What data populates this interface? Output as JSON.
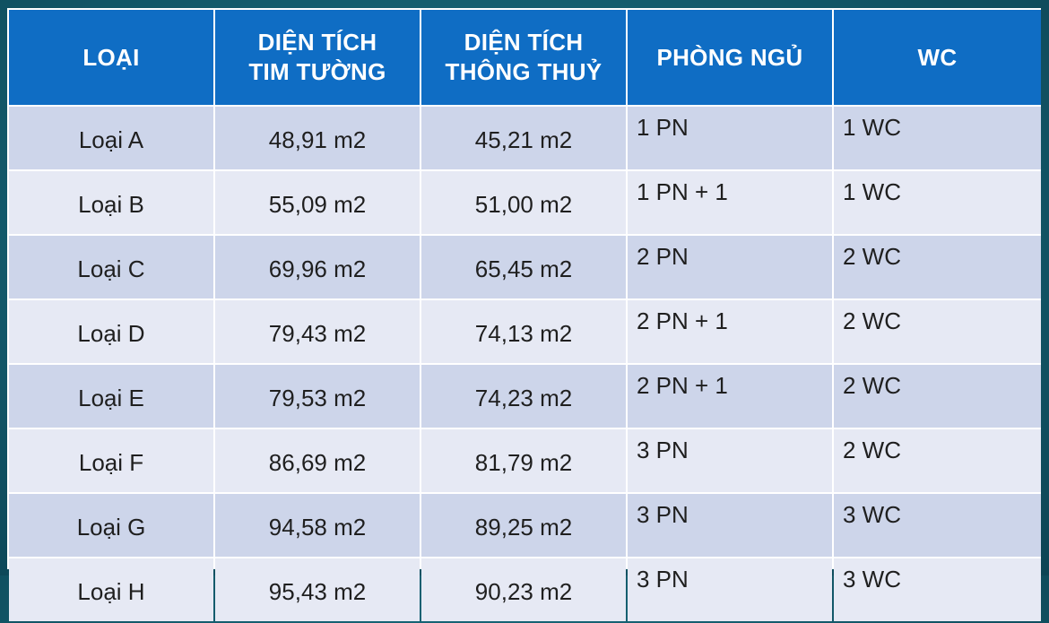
{
  "table": {
    "headers": [
      "LOẠI",
      "DIỆN TÍCH\nTIM TƯỜNG",
      "DIỆN TÍCH\nTHÔNG THUỶ",
      "PHÒNG NGỦ",
      "WC"
    ],
    "rows": [
      [
        "Loại A",
        "48,91 m2",
        "45,21 m2",
        "1 PN",
        "1 WC"
      ],
      [
        "Loại B",
        "55,09 m2",
        "51,00 m2",
        "1 PN + 1",
        "1 WC"
      ],
      [
        "Loại C",
        "69,96 m2",
        "65,45 m2",
        "2 PN",
        "2 WC"
      ],
      [
        "Loại D",
        "79,43 m2",
        "74,13 m2",
        "2 PN + 1",
        "2 WC"
      ],
      [
        "Loại E",
        "79,53 m2",
        "74,23 m2",
        "2 PN + 1",
        "2 WC"
      ],
      [
        "Loại F",
        "86,69 m2",
        "81,79 m2",
        "3 PN",
        "2 WC"
      ],
      [
        "Loại G",
        "94,58 m2",
        "89,25 m2",
        "3 PN",
        "3 WC"
      ],
      [
        "Loại H",
        "95,43 m2",
        "90,23 m2",
        "3 PN",
        "3 WC"
      ]
    ]
  },
  "colors": {
    "header_bg": "#0f6dc4",
    "row_odd_bg": "#cdd5ea",
    "row_even_bg": "#e6e9f4",
    "page_bg": "#155f70"
  }
}
